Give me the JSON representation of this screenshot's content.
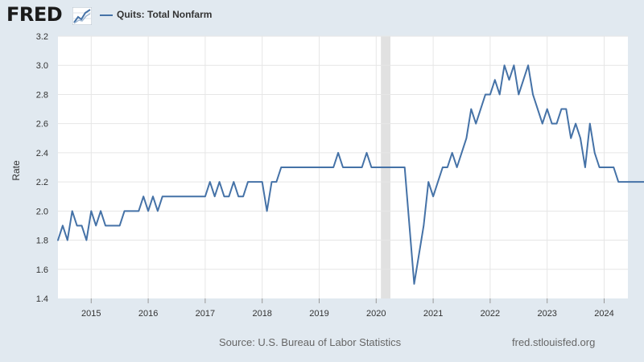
{
  "header": {
    "logo_text": "FRED",
    "legend_label": "Quits: Total Nonfarm"
  },
  "footer": {
    "source": "Source: U.S. Bureau of Labor Statistics",
    "url": "fred.stlouisfed.org"
  },
  "colors": {
    "line": "#4572a7",
    "background": "#e1e9f0",
    "plot_background": "#ffffff",
    "recession": "#e1e1e1",
    "grid": "#e6e6e6"
  },
  "chart_data": {
    "type": "line",
    "title": "",
    "xlabel": "",
    "ylabel": "Rate",
    "ylim": [
      1.4,
      3.2
    ],
    "xlim": [
      "2014-06",
      "2024-06"
    ],
    "yticks": [
      "1.4",
      "1.6",
      "1.8",
      "2.0",
      "2.2",
      "2.4",
      "2.6",
      "2.8",
      "3.0",
      "3.2"
    ],
    "xticks": [
      "2015",
      "2016",
      "2017",
      "2018",
      "2019",
      "2020",
      "2021",
      "2022",
      "2023",
      "2024"
    ],
    "grid": true,
    "legend": "top-left",
    "recession_shading": [
      {
        "start": "2020-02",
        "end": "2020-04"
      }
    ],
    "series": [
      {
        "name": "Quits: Total Nonfarm",
        "start": "2014-06",
        "frequency": "monthly",
        "values": [
          1.8,
          1.9,
          1.8,
          2.0,
          1.9,
          1.9,
          1.8,
          2.0,
          1.9,
          2.0,
          1.9,
          1.9,
          1.9,
          1.9,
          2.0,
          2.0,
          2.0,
          2.0,
          2.1,
          2.0,
          2.1,
          2.0,
          2.1,
          2.1,
          2.1,
          2.1,
          2.1,
          2.1,
          2.1,
          2.1,
          2.1,
          2.1,
          2.2,
          2.1,
          2.2,
          2.1,
          2.1,
          2.2,
          2.1,
          2.1,
          2.2,
          2.2,
          2.2,
          2.2,
          2.0,
          2.2,
          2.2,
          2.3,
          2.3,
          2.3,
          2.3,
          2.3,
          2.3,
          2.3,
          2.3,
          2.3,
          2.3,
          2.3,
          2.3,
          2.4,
          2.3,
          2.3,
          2.3,
          2.3,
          2.3,
          2.4,
          2.3,
          2.3,
          2.3,
          2.3,
          2.3,
          2.3,
          2.3,
          2.3,
          1.9,
          1.5,
          1.7,
          1.9,
          2.2,
          2.1,
          2.2,
          2.3,
          2.3,
          2.4,
          2.3,
          2.4,
          2.5,
          2.7,
          2.6,
          2.7,
          2.8,
          2.8,
          2.9,
          2.8,
          3.0,
          2.9,
          3.0,
          2.8,
          2.9,
          3.0,
          2.8,
          2.7,
          2.6,
          2.7,
          2.6,
          2.6,
          2.7,
          2.7,
          2.5,
          2.6,
          2.5,
          2.3,
          2.6,
          2.4,
          2.3,
          2.3,
          2.3,
          2.3,
          2.2,
          2.2,
          2.2,
          2.2,
          2.2,
          2.2,
          2.2,
          2.2,
          2.1,
          2.1
        ]
      }
    ]
  }
}
